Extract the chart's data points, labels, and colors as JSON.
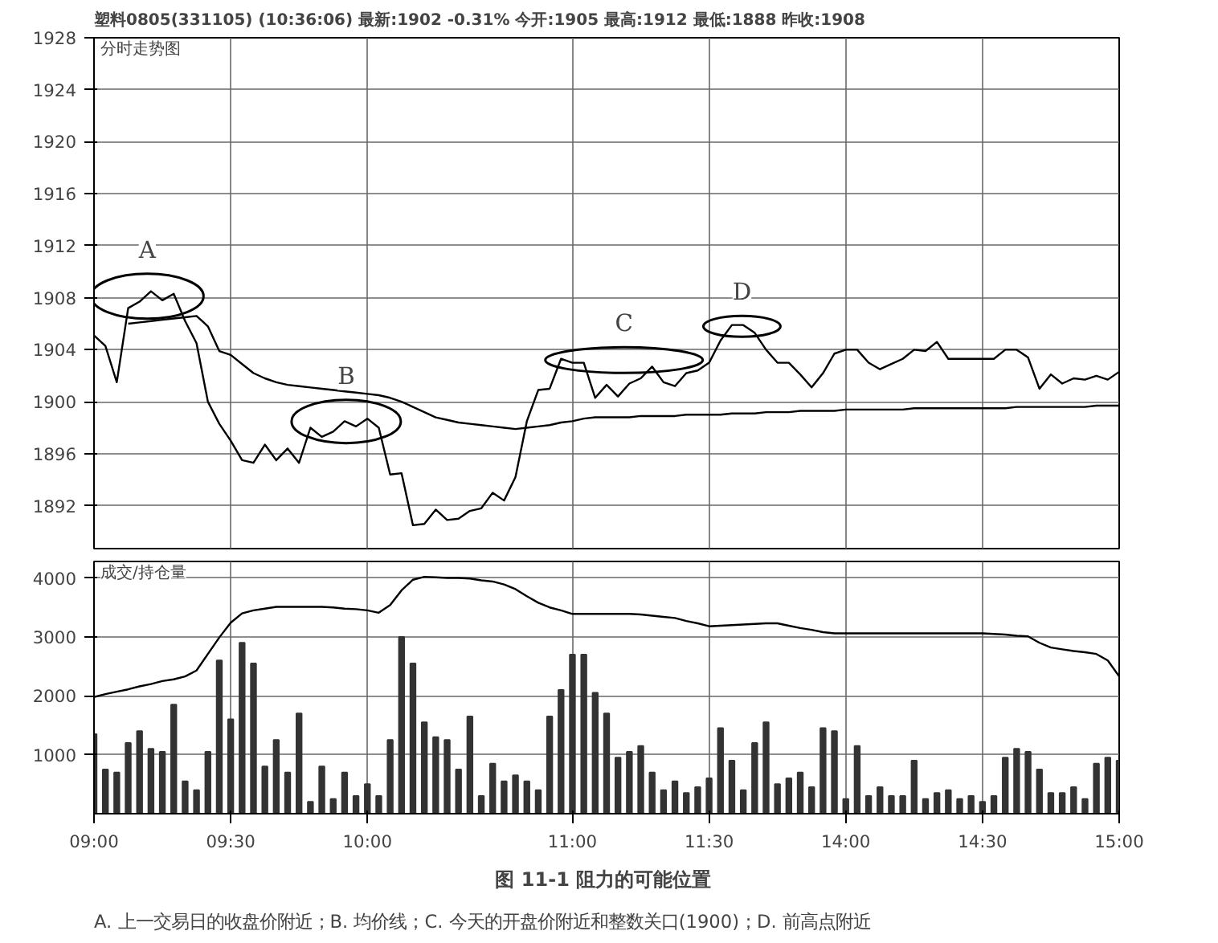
{
  "chart_data": [
    {
      "type": "line",
      "title": "塑料0805(331105) (10:36:06) 最新:1902 -0.31% 今开:1905 最高:1912 最低:1888 昨收:1908",
      "subtitle": "分时走势图",
      "categories": [
        null,
        null,
        null,
        null,
        null,
        null,
        null,
        null,
        null,
        null,
        null,
        null,
        null,
        null,
        null,
        null,
        null,
        null,
        null,
        null,
        null,
        null,
        null,
        null,
        null,
        null,
        null,
        null,
        null,
        null,
        null,
        null,
        null,
        null,
        null,
        null,
        null,
        null,
        null,
        null,
        null,
        null,
        null,
        null,
        null,
        null,
        null,
        null,
        null,
        null,
        null,
        null,
        null,
        null,
        null,
        null,
        null,
        null,
        null,
        null,
        null,
        null,
        null,
        null,
        null,
        null,
        null,
        null,
        null,
        null,
        null,
        null,
        null,
        null,
        null,
        null,
        null,
        null,
        null,
        null,
        null,
        null,
        null,
        null,
        null,
        null,
        null,
        null,
        null,
        null,
        null
      ],
      "ylim": [
        1888.7,
        1928
      ],
      "yticks": [
        1892,
        1896,
        1900,
        1904,
        1908,
        1912,
        1916,
        1920,
        1924,
        1928
      ],
      "tick_labels": "y",
      "grid": true,
      "marker": "none",
      "line_style": "solid",
      "series": [
        {
          "color": "#000000",
          "values": [
            1905.1,
            1904.3,
            1901.5,
            1907.2,
            1907.7,
            1908.5,
            1907.8,
            1908.3,
            1906.2,
            1904.5,
            1900,
            1898.3,
            1897,
            1895.5,
            1895.3,
            1896.7,
            1895.5,
            1896.4,
            1895.3,
            1898,
            1897.3,
            1897.7,
            1898.5,
            1898.1,
            1898.7,
            1898,
            1894.4,
            1894.5,
            1890.5,
            1890.6,
            1891.7,
            1890.9,
            1891,
            1891.6,
            1891.8,
            1893,
            1892.4,
            1894.2,
            1898.5,
            1900.9,
            1901,
            1903.3,
            1903,
            1903,
            1900.3,
            1901.3,
            1900.4,
            1901.4,
            1901.8,
            1902.7,
            1901.5,
            1901.2,
            1902.2,
            1902.4,
            1903,
            1904.7,
            1905.9,
            1905.9,
            1905.3,
            1904,
            1903,
            1903,
            1902.1,
            1901.1,
            1902.2,
            1903.7,
            1904,
            1904,
            1903,
            1902.5,
            1902.9,
            1903.3,
            1904,
            1903.9,
            1904.6,
            1903.3,
            1903.3,
            1903.3,
            1903.3,
            1903.3,
            1904,
            1904,
            1903.4,
            1901,
            1902.1,
            1901.4,
            1901.8,
            1901.7,
            1902,
            1901.7,
            1902.3
          ]
        },
        {
          "color": "#000000",
          "values": [
            null,
            null,
            null,
            1906,
            1906.1,
            1906.2,
            1906.3,
            1906.4,
            1906.5,
            1906.6,
            1905.8,
            1903.9,
            1903.6,
            1902.9,
            1902.2,
            1901.8,
            1901.5,
            1901.3,
            1901.2,
            1901.1,
            1901,
            1900.9,
            1900.8,
            1900.7,
            1900.6,
            1900.5,
            1900.3,
            1900,
            1899.6,
            1899.2,
            1898.8,
            1898.6,
            1898.4,
            1898.3,
            1898.2,
            1898.1,
            1898,
            1897.9,
            1898,
            1898.1,
            1898.2,
            1898.4,
            1898.5,
            1898.7,
            1898.8,
            1898.8,
            1898.8,
            1898.8,
            1898.9,
            1898.9,
            1898.9,
            1898.9,
            1899,
            1899,
            1899,
            1899,
            1899.1,
            1899.1,
            1899.1,
            1899.2,
            1899.2,
            1899.2,
            1899.3,
            1899.3,
            1899.3,
            1899.3,
            1899.4,
            1899.4,
            1899.4,
            1899.4,
            1899.4,
            1899.4,
            1899.5,
            1899.5,
            1899.5,
            1899.5,
            1899.5,
            1899.5,
            1899.5,
            1899.5,
            1899.5,
            1899.6,
            1899.6,
            1899.6,
            1899.6,
            1899.6,
            1899.6,
            1899.6,
            1899.7,
            1899.7,
            1899.7
          ]
        }
      ],
      "annotations": [
        "A",
        "B",
        "C",
        "D"
      ]
    },
    {
      "type": "bar",
      "title": "成交/持仓量",
      "categories": [
        "09:00",
        null,
        null,
        null,
        null,
        null,
        null,
        null,
        null,
        null,
        null,
        null,
        "09:30",
        null,
        null,
        null,
        null,
        null,
        null,
        null,
        null,
        null,
        null,
        null,
        "10:00",
        null,
        null,
        null,
        null,
        null,
        null,
        null,
        null,
        null,
        null,
        null,
        null,
        null,
        null,
        null,
        null,
        null,
        "11:00",
        null,
        null,
        null,
        null,
        null,
        null,
        null,
        null,
        null,
        null,
        null,
        "11:30",
        null,
        null,
        null,
        null,
        null,
        null,
        null,
        null,
        null,
        null,
        null,
        "14:00",
        null,
        null,
        null,
        null,
        null,
        null,
        null,
        null,
        null,
        null,
        null,
        "14:30",
        null,
        null,
        null,
        null,
        null,
        null,
        null,
        null,
        null,
        null,
        null,
        "15:00"
      ],
      "ylim": [
        0,
        4280
      ],
      "yticks": [
        1000,
        2000,
        3000,
        4000
      ],
      "grid": true,
      "series": [
        {
          "type": "bar",
          "color": "#333333",
          "values": [
            1350,
            750,
            700,
            1200,
            1400,
            1100,
            1050,
            1850,
            550,
            400,
            1050,
            2600,
            1600,
            2900,
            2550,
            800,
            1250,
            700,
            1700,
            200,
            800,
            250,
            700,
            300,
            500,
            300,
            1250,
            3000,
            2550,
            1550,
            1300,
            1250,
            750,
            1650,
            300,
            850,
            550,
            650,
            550,
            400,
            1650,
            2100,
            2700,
            2700,
            2050,
            1700,
            950,
            1050,
            1150,
            700,
            400,
            550,
            350,
            450,
            600,
            1450,
            900,
            400,
            1200,
            1550,
            500,
            600,
            700,
            450,
            1450,
            1400,
            250,
            1150,
            300,
            450,
            300,
            300,
            900,
            250,
            350,
            400,
            250,
            300,
            200,
            300,
            950,
            1100,
            1050,
            750,
            350,
            350,
            450,
            250,
            850,
            950,
            900
          ]
        },
        {
          "type": "line",
          "color": "#000000",
          "values": [
            1980,
            2030,
            2070,
            2110,
            2160,
            2200,
            2250,
            2280,
            2330,
            2430,
            2710,
            2990,
            3240,
            3400,
            3450,
            3480,
            3510,
            3510,
            3510,
            3510,
            3510,
            3500,
            3480,
            3470,
            3450,
            3410,
            3540,
            3790,
            3970,
            4020,
            4010,
            4000,
            4000,
            3990,
            3960,
            3940,
            3890,
            3810,
            3690,
            3580,
            3500,
            3450,
            3390,
            3390,
            3390,
            3390,
            3390,
            3390,
            3380,
            3360,
            3340,
            3320,
            3270,
            3230,
            3180,
            3190,
            3200,
            3210,
            3220,
            3230,
            3230,
            3190,
            3150,
            3120,
            3080,
            3060,
            3060,
            3060,
            3060,
            3060,
            3060,
            3060,
            3060,
            3060,
            3060,
            3060,
            3060,
            3060,
            3060,
            3050,
            3040,
            3020,
            3010,
            2900,
            2820,
            2790,
            2760,
            2740,
            2710,
            2600,
            2330
          ]
        }
      ],
      "annotations": [
        "图 11-1  阻力的可能位置",
        "A. 上一交易日的收盘价附近；B. 均价线；C. 今天的开盘价附近和整数关口(1900)；D. 前高点附近"
      ]
    }
  ]
}
